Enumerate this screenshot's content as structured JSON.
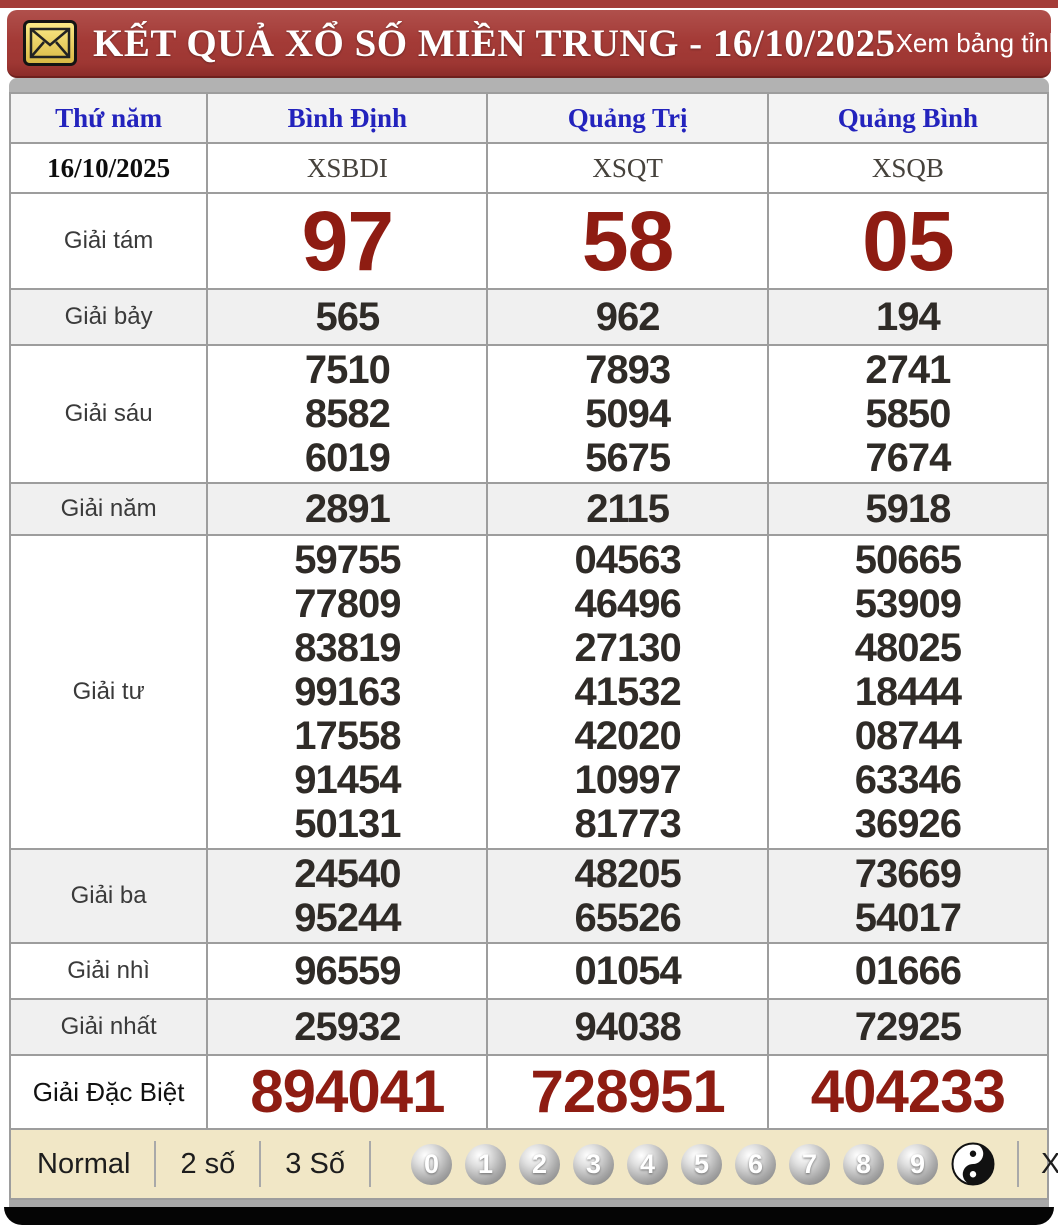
{
  "titlebar": {
    "title": "KẾT QUẢ XỔ SỐ MIỀN TRUNG - 16/10/2025",
    "link": "Xem bảng tỉnh..."
  },
  "table": {
    "day": "Thứ năm",
    "date": "16/10/2025",
    "provinces": [
      "Bình Định",
      "Quảng Trị",
      "Quảng Bình"
    ],
    "codes": [
      "XSBDI",
      "XSQT",
      "XSQB"
    ],
    "labels": {
      "eighth": "Giải tám",
      "seventh": "Giải bảy",
      "sixth": "Giải sáu",
      "fifth": "Giải năm",
      "fourth": "Giải tư",
      "third": "Giải ba",
      "second": "Giải nhì",
      "first": "Giải nhất",
      "special": "Giải Đặc Biệt"
    },
    "results": [
      {
        "eighth": "97",
        "seventh": "565",
        "sixth": [
          "7510",
          "8582",
          "6019"
        ],
        "fifth": "2891",
        "fourth": [
          "59755",
          "77809",
          "83819",
          "99163",
          "17558",
          "91454",
          "50131"
        ],
        "third": [
          "24540",
          "95244"
        ],
        "second": "96559",
        "first": "25932",
        "special": "894041"
      },
      {
        "eighth": "58",
        "seventh": "962",
        "sixth": [
          "7893",
          "5094",
          "5675"
        ],
        "fifth": "2115",
        "fourth": [
          "04563",
          "46496",
          "27130",
          "41532",
          "42020",
          "10997",
          "81773"
        ],
        "third": [
          "48205",
          "65526"
        ],
        "second": "01054",
        "first": "94038",
        "special": "728951"
      },
      {
        "eighth": "05",
        "seventh": "194",
        "sixth": [
          "2741",
          "5850",
          "7674"
        ],
        "fifth": "5918",
        "fourth": [
          "50665",
          "53909",
          "48025",
          "18444",
          "08744",
          "63346",
          "36926"
        ],
        "third": [
          "73669",
          "54017"
        ],
        "second": "01666",
        "first": "72925",
        "special": "404233"
      }
    ]
  },
  "footer": {
    "modes": [
      "Normal",
      "2 số",
      "3 Số"
    ],
    "digits": [
      "0",
      "1",
      "2",
      "3",
      "4",
      "5",
      "6",
      "7",
      "8",
      "9"
    ],
    "loto_link": "Xem Bảng Loto"
  },
  "colors": {
    "accent_red": "#a43b37",
    "number_red": "#8e1c12",
    "header_blue": "#2323bd",
    "footer_cream": "#f1e7c6"
  }
}
